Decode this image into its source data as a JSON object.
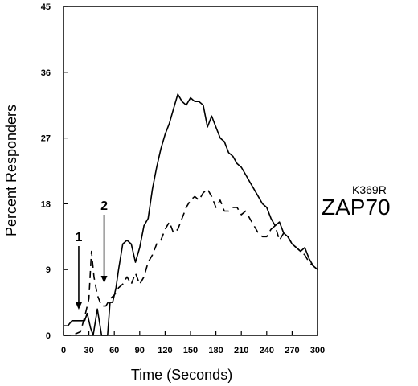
{
  "chart_data": {
    "type": "line",
    "xlabel": "Time (Seconds)",
    "ylabel": "Percent Responders",
    "xlim": [
      0,
      300
    ],
    "ylim": [
      0,
      45
    ],
    "xticks": [
      0,
      30,
      60,
      90,
      120,
      150,
      180,
      210,
      240,
      270,
      300
    ],
    "yticks": [
      0,
      9,
      18,
      27,
      36,
      45
    ],
    "grid": false,
    "annotation": {
      "main": "ZAP70",
      "superscript": "K369R"
    },
    "markers": [
      {
        "label": "1",
        "x": 18
      },
      {
        "label": "2",
        "x": 48
      }
    ],
    "series": [
      {
        "style": "solid",
        "x": [
          0,
          5,
          10,
          15,
          20,
          25,
          28,
          32,
          35,
          40,
          45,
          48,
          52,
          55,
          58,
          62,
          65,
          70,
          75,
          80,
          85,
          90,
          95,
          100,
          105,
          110,
          115,
          120,
          125,
          130,
          135,
          140,
          145,
          150,
          155,
          160,
          165,
          170,
          175,
          180,
          185,
          190,
          195,
          200,
          205,
          210,
          215,
          220,
          225,
          230,
          235,
          240,
          245,
          250,
          255,
          260,
          265,
          270,
          275,
          280,
          285,
          290,
          295,
          300
        ],
        "y": [
          1.3,
          1.3,
          2.0,
          2.0,
          2.0,
          2.0,
          3.0,
          1.0,
          0.0,
          3.6,
          0.0,
          0.0,
          0.0,
          4.5,
          4.5,
          6.5,
          9.0,
          12.5,
          13.0,
          12.5,
          10.0,
          12.0,
          15.0,
          16.0,
          20.0,
          23.0,
          25.5,
          27.5,
          29.0,
          31.0,
          33.0,
          32.0,
          31.5,
          32.5,
          32.0,
          32.0,
          31.5,
          28.5,
          30.0,
          28.5,
          27.0,
          26.5,
          25.0,
          24.5,
          23.5,
          23.0,
          22.0,
          21.0,
          20.0,
          19.0,
          18.0,
          17.5,
          16.0,
          15.0,
          15.5,
          14.0,
          13.5,
          12.5,
          12.0,
          11.5,
          12.0,
          10.5,
          9.5,
          9.0
        ]
      },
      {
        "style": "dashed",
        "x": [
          0,
          10,
          20,
          25,
          30,
          33,
          36,
          40,
          45,
          50,
          55,
          60,
          65,
          70,
          75,
          80,
          85,
          90,
          95,
          100,
          105,
          110,
          115,
          120,
          125,
          130,
          135,
          140,
          145,
          150,
          155,
          160,
          165,
          170,
          175,
          180,
          185,
          190,
          195,
          200,
          205,
          210,
          215,
          220,
          225,
          230,
          235,
          240,
          245,
          250,
          255,
          260,
          265,
          270,
          275,
          280,
          285,
          290,
          295,
          300
        ],
        "y": [
          0.0,
          0.0,
          0.5,
          2.5,
          5.0,
          11.5,
          8.0,
          5.5,
          4.0,
          4.0,
          5.0,
          5.5,
          6.5,
          7.0,
          8.0,
          7.0,
          8.5,
          7.0,
          8.0,
          10.0,
          11.0,
          12.5,
          13.0,
          14.5,
          15.5,
          14.0,
          14.5,
          16.0,
          17.5,
          18.5,
          19.0,
          18.5,
          19.5,
          20.0,
          19.0,
          17.5,
          18.5,
          17.0,
          17.0,
          17.5,
          17.5,
          16.5,
          17.0,
          16.0,
          15.0,
          14.0,
          13.5,
          13.5,
          14.5,
          15.0,
          13.0,
          14.0,
          13.5,
          12.5,
          12.0,
          11.5,
          11.0,
          10.0,
          9.5,
          9.0
        ]
      }
    ]
  }
}
